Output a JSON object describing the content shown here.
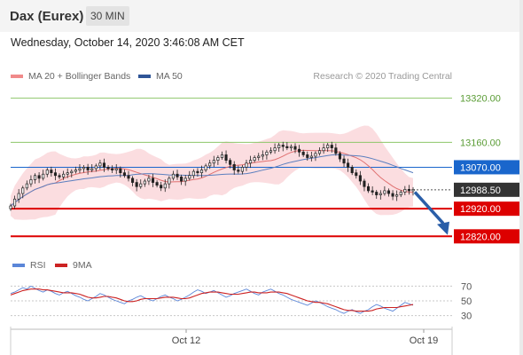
{
  "header": {
    "instrument": "Dax (Eurex)",
    "timeframe": "30 MIN"
  },
  "datetime": "Wednesday, October 14, 2020 3:46:08 AM CET",
  "legend": [
    {
      "label": "MA 20 + Bollinger Bands",
      "color": "#f08a8a"
    },
    {
      "label": "MA 50",
      "color": "#2f5597"
    }
  ],
  "credit": "Research © 2020 Trading Central",
  "colors": {
    "resistance": "#8dc66a",
    "pivot": "#1a66cc",
    "support": "#dd0000",
    "price": "#333333",
    "arrow": "#2a5ea8",
    "band": "#f9d2d6",
    "ma20": "#e07070",
    "ma50": "#5b7fbf",
    "rsi": "#5b86d8",
    "rsi_ma": "#cc2222"
  },
  "chart_data": [
    {
      "type": "candlestick",
      "ylim": [
        12760,
        13370
      ],
      "x_ticks": [
        "Oct 12",
        "Oct 19"
      ],
      "levels": [
        {
          "value": 13320,
          "label": "13320.00",
          "kind": "resistance"
        },
        {
          "value": 13160,
          "label": "13160.00",
          "kind": "resistance"
        },
        {
          "value": 13070,
          "label": "13070.00",
          "kind": "pivot"
        },
        {
          "value": 12988.5,
          "label": "12988.50",
          "kind": "price"
        },
        {
          "value": 12920,
          "label": "12920.00",
          "kind": "support"
        },
        {
          "value": 12820,
          "label": "12820.00",
          "kind": "support"
        }
      ],
      "close_series": [
        12930,
        12955,
        12975,
        12995,
        13010,
        13025,
        13040,
        13030,
        13045,
        13060,
        13050,
        13040,
        13035,
        13045,
        13050,
        13055,
        13060,
        13065,
        13070,
        13060,
        13065,
        13075,
        13085,
        13070,
        13065,
        13060,
        13065,
        13050,
        13040,
        13030,
        13015,
        13000,
        13010,
        13020,
        13030,
        13015,
        13005,
        12995,
        13010,
        13030,
        13045,
        13035,
        13020,
        13030,
        13040,
        13055,
        13050,
        13060,
        13075,
        13085,
        13095,
        13105,
        13115,
        13095,
        13080,
        13060,
        13055,
        13070,
        13085,
        13095,
        13105,
        13110,
        13115,
        13125,
        13130,
        13140,
        13150,
        13145,
        13140,
        13145,
        13135,
        13125,
        13115,
        13105,
        13110,
        13120,
        13130,
        13140,
        13150,
        13140,
        13120,
        13100,
        13085,
        13070,
        13050,
        13040,
        13020,
        13000,
        12985,
        12980,
        12970,
        12975,
        12985,
        12975,
        12965,
        12970,
        12980,
        12990,
        12985,
        12990
      ]
    },
    {
      "type": "line",
      "title": "RSI",
      "series": [
        {
          "name": "RSI",
          "values": [
            60,
            62,
            65,
            68,
            66,
            70,
            67,
            64,
            62,
            65,
            63,
            60,
            58,
            61,
            63,
            60,
            57,
            55,
            52,
            50,
            53,
            56,
            60,
            58,
            55,
            52,
            50,
            48,
            46,
            50,
            52,
            55,
            57,
            54,
            52,
            50,
            53,
            56,
            58,
            55,
            53,
            50,
            52,
            55,
            58,
            62,
            65,
            63,
            60,
            62,
            64,
            61,
            58,
            55,
            57,
            60,
            62,
            64,
            66,
            63,
            60,
            58,
            62,
            64,
            66,
            63,
            60,
            58,
            55,
            52,
            50,
            48,
            46,
            44,
            47,
            50,
            48,
            45,
            42,
            40,
            38,
            35,
            33,
            36,
            38,
            35,
            33,
            36,
            38,
            42,
            45,
            43,
            40,
            38,
            36,
            40,
            44,
            48,
            46,
            44
          ]
        },
        {
          "name": "9MA",
          "values": [
            58,
            60,
            62,
            64,
            65,
            66,
            66,
            66,
            65,
            65,
            64,
            63,
            62,
            61,
            61,
            61,
            60,
            59,
            57,
            55,
            54,
            54,
            55,
            56,
            56,
            55,
            54,
            52,
            50,
            49,
            49,
            50,
            52,
            53,
            53,
            53,
            53,
            54,
            55,
            55,
            55,
            54,
            53,
            53,
            54,
            56,
            58,
            60,
            61,
            62,
            62,
            62,
            61,
            60,
            59,
            59,
            59,
            60,
            61,
            62,
            62,
            61,
            61,
            61,
            62,
            62,
            62,
            61,
            60,
            58,
            56,
            54,
            52,
            50,
            49,
            48,
            48,
            47,
            46,
            44,
            42,
            40,
            38,
            37,
            37,
            36,
            36,
            36,
            36,
            37,
            39,
            40,
            41,
            41,
            41,
            41,
            42,
            43,
            44,
            45
          ]
        }
      ],
      "levels": [
        {
          "value": 70,
          "label": "70"
        },
        {
          "value": 50,
          "label": "50"
        },
        {
          "value": 30,
          "label": "30"
        }
      ],
      "ylim": [
        15,
        85
      ]
    }
  ],
  "rsi_legend": [
    {
      "label": "RSI",
      "color": "#5b86d8"
    },
    {
      "label": "9MA",
      "color": "#cc2222"
    }
  ]
}
